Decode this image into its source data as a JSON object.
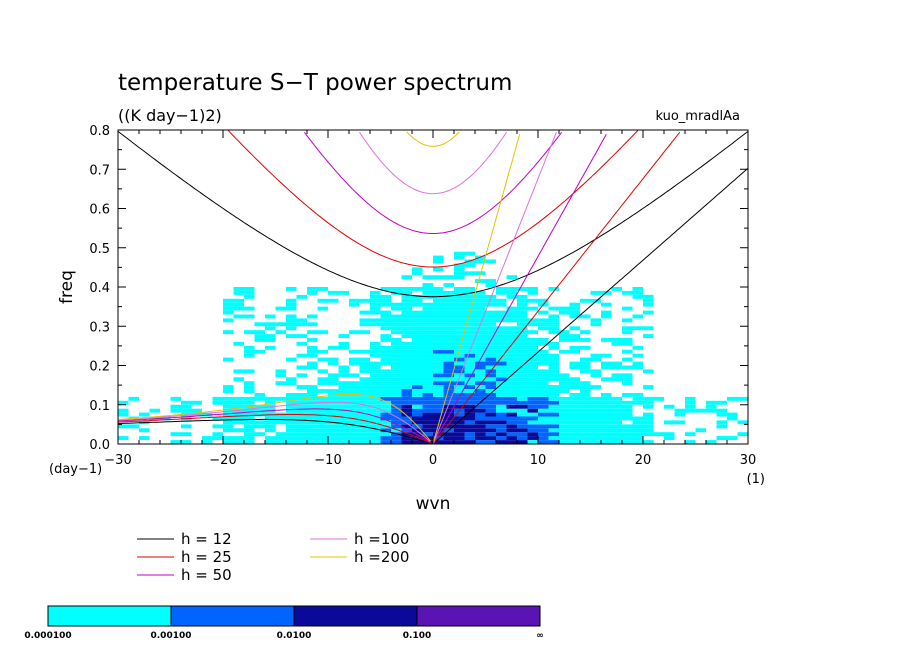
{
  "chart_data": {
    "type": "heatmap",
    "title": "temperature S−T power spectrum",
    "subtitle": "((K day−1)2)",
    "tag": "kuo_mradlAa",
    "xlabel": "wvn",
    "ylabel": "freq",
    "x_unit": "(1)",
    "y_unit": "(day−1)",
    "xlim": [
      -30,
      30
    ],
    "ylim": [
      0,
      0.8
    ],
    "xticks": [
      "−30",
      "−20",
      "−10",
      "0",
      "10",
      "20",
      "30"
    ],
    "yticks": [
      "0.0",
      "0.1",
      "0.2",
      "0.3",
      "0.4",
      "0.5",
      "0.6",
      "0.7",
      "0.8"
    ],
    "colorbar": {
      "labels": [
        "0.000100",
        "0.00100",
        "0.0100",
        "0.100",
        "∞"
      ],
      "colors": [
        "#00ffff",
        "#0064ff",
        "#0a0a9a",
        "#5a14b4"
      ]
    },
    "dispersion_legend": [
      {
        "label": "h = 12",
        "color": "#000000"
      },
      {
        "label": "h = 25",
        "color": "#e00000"
      },
      {
        "label": "h = 50",
        "color": "#c000c0"
      },
      {
        "label": "h =100",
        "color": "#e070e0"
      },
      {
        "label": "h =200",
        "color": "#e8c000"
      }
    ],
    "grid": false
  }
}
